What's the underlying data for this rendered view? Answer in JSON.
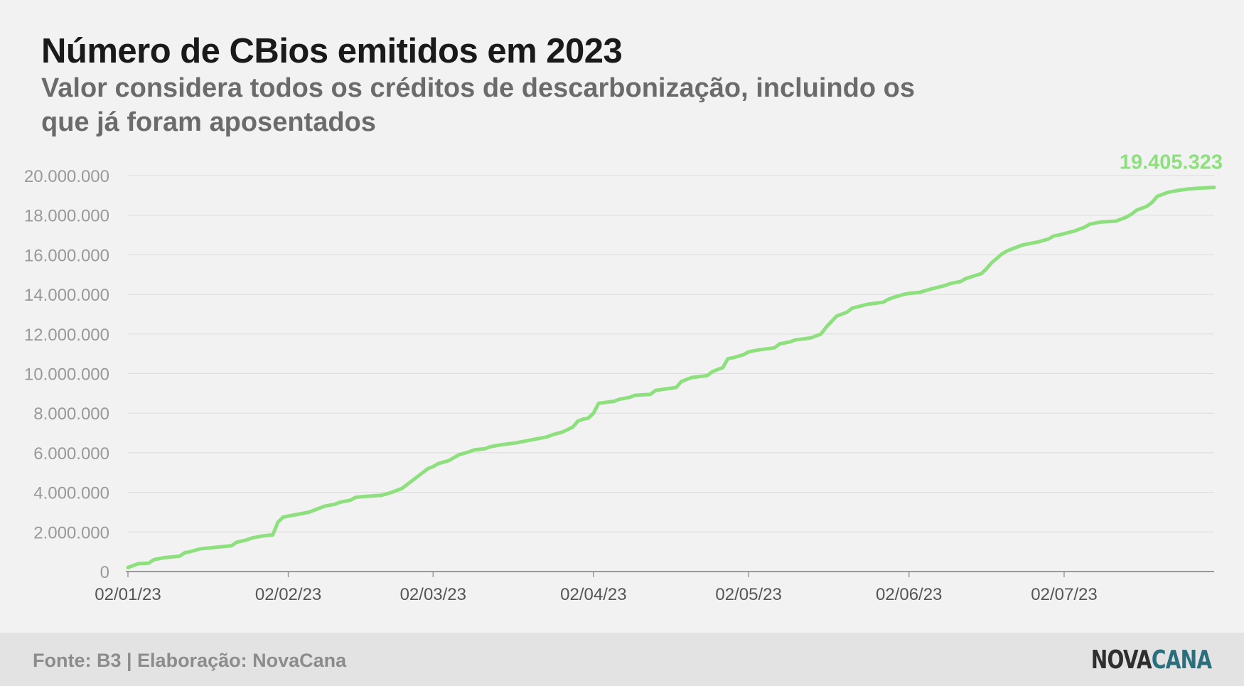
{
  "title": "Número de CBios emitidos em 2023",
  "subtitle": "Valor considera todos os créditos de descarbonização, incluindo os que já foram aposentados",
  "footer": {
    "source": "Fonte: B3 | Elaboração: NovaCana",
    "logo_part1": "NOVA",
    "logo_part2": "CANA"
  },
  "colors": {
    "line": "#8ee07f",
    "grid": "#dcdcdc",
    "axis": "#999999",
    "tick_text": "#999999",
    "xtick_text": "#555555",
    "logo_dark": "#2f2f2f",
    "logo_accent": "#2a6f7d"
  },
  "chart_data": {
    "type": "line",
    "title": "Número de CBios emitidos em 2023",
    "subtitle": "Valor considera todos os créditos de descarbonização, incluindo os que já foram aposentados",
    "xlabel": "",
    "ylabel": "",
    "ylim": [
      0,
      20000000
    ],
    "yticks": [
      0,
      2000000,
      4000000,
      6000000,
      8000000,
      10000000,
      12000000,
      14000000,
      16000000,
      18000000,
      20000000
    ],
    "ytick_labels": [
      "0",
      "2.000.000",
      "4.000.000",
      "6.000.000",
      "8.000.000",
      "10.000.000",
      "12.000.000",
      "14.000.000",
      "16.000.000",
      "18.000.000",
      "20.000.000"
    ],
    "xlim": [
      "2023-01-02",
      "2023-07-31"
    ],
    "xticks": [
      "2023-01-02",
      "2023-02-02",
      "2023-03-02",
      "2023-04-02",
      "2023-05-02",
      "2023-06-02",
      "2023-07-02"
    ],
    "xtick_labels": [
      "02/01/23",
      "02/02/23",
      "02/03/23",
      "02/04/23",
      "02/05/23",
      "02/06/23",
      "02/07/23"
    ],
    "grid": true,
    "end_label": "19.405.323",
    "series": [
      {
        "x": [
          "2023-01-02",
          "2023-01-04",
          "2023-01-06",
          "2023-01-07",
          "2023-01-09",
          "2023-01-12",
          "2023-01-13",
          "2023-01-14",
          "2023-01-16",
          "2023-01-18",
          "2023-01-22",
          "2023-01-23",
          "2023-01-25",
          "2023-01-26",
          "2023-01-28",
          "2023-01-30",
          "2023-01-31",
          "2023-02-01",
          "2023-02-02",
          "2023-02-06",
          "2023-02-09",
          "2023-02-11",
          "2023-02-12",
          "2023-02-14",
          "2023-02-15",
          "2023-02-17",
          "2023-02-20",
          "2023-02-22",
          "2023-02-24",
          "2023-02-25",
          "2023-02-27",
          "2023-03-01",
          "2023-03-02",
          "2023-03-03",
          "2023-03-05",
          "2023-03-07",
          "2023-03-09",
          "2023-03-10",
          "2023-03-12",
          "2023-03-13",
          "2023-03-15",
          "2023-03-18",
          "2023-03-19",
          "2023-03-20",
          "2023-03-21",
          "2023-03-24",
          "2023-03-25",
          "2023-03-27",
          "2023-03-29",
          "2023-03-30",
          "2023-03-31",
          "2023-04-01",
          "2023-04-02",
          "2023-04-03",
          "2023-04-06",
          "2023-04-07",
          "2023-04-09",
          "2023-04-10",
          "2023-04-13",
          "2023-04-14",
          "2023-04-18",
          "2023-04-19",
          "2023-04-21",
          "2023-04-24",
          "2023-04-25",
          "2023-04-27",
          "2023-04-28",
          "2023-04-29",
          "2023-05-01",
          "2023-05-02",
          "2023-05-04",
          "2023-05-07",
          "2023-05-08",
          "2023-05-10",
          "2023-05-11",
          "2023-05-14",
          "2023-05-16",
          "2023-05-17",
          "2023-05-19",
          "2023-05-21",
          "2023-05-22",
          "2023-05-25",
          "2023-05-28",
          "2023-05-29",
          "2023-05-30",
          "2023-06-01",
          "2023-06-02",
          "2023-06-04",
          "2023-06-06",
          "2023-06-09",
          "2023-06-10",
          "2023-06-12",
          "2023-06-13",
          "2023-06-16",
          "2023-06-17",
          "2023-06-18",
          "2023-06-20",
          "2023-06-21",
          "2023-06-22",
          "2023-06-24",
          "2023-06-27",
          "2023-06-29",
          "2023-06-30",
          "2023-07-01",
          "2023-07-04",
          "2023-07-06",
          "2023-07-07",
          "2023-07-09",
          "2023-07-12",
          "2023-07-14",
          "2023-07-15",
          "2023-07-16",
          "2023-07-18",
          "2023-07-19",
          "2023-07-20",
          "2023-07-21",
          "2023-07-22",
          "2023-07-24",
          "2023-07-26",
          "2023-07-28",
          "2023-07-31"
        ],
        "values": [
          200000,
          400000,
          420000,
          600000,
          700000,
          780000,
          950000,
          1000000,
          1150000,
          1200000,
          1300000,
          1480000,
          1600000,
          1700000,
          1800000,
          1850000,
          2500000,
          2750000,
          2800000,
          3000000,
          3300000,
          3400000,
          3500000,
          3600000,
          3750000,
          3800000,
          3850000,
          4000000,
          4200000,
          4400000,
          4800000,
          5200000,
          5300000,
          5450000,
          5600000,
          5900000,
          6050000,
          6150000,
          6200000,
          6300000,
          6400000,
          6500000,
          6550000,
          6600000,
          6650000,
          6800000,
          6900000,
          7050000,
          7300000,
          7600000,
          7700000,
          7750000,
          8000000,
          8500000,
          8600000,
          8700000,
          8800000,
          8900000,
          8950000,
          9150000,
          9300000,
          9600000,
          9800000,
          9900000,
          10100000,
          10300000,
          10750000,
          10800000,
          10950000,
          11100000,
          11200000,
          11300000,
          11500000,
          11600000,
          11700000,
          11800000,
          12000000,
          12350000,
          12900000,
          13100000,
          13300000,
          13500000,
          13600000,
          13750000,
          13850000,
          14000000,
          14050000,
          14100000,
          14250000,
          14450000,
          14550000,
          14650000,
          14800000,
          15050000,
          15300000,
          15600000,
          16050000,
          16200000,
          16300000,
          16500000,
          16650000,
          16800000,
          16950000,
          17000000,
          17200000,
          17400000,
          17550000,
          17650000,
          17700000,
          17900000,
          18050000,
          18250000,
          18450000,
          18650000,
          18950000,
          19050000,
          19150000,
          19250000,
          19320000,
          19360000,
          19405323
        ]
      }
    ]
  }
}
